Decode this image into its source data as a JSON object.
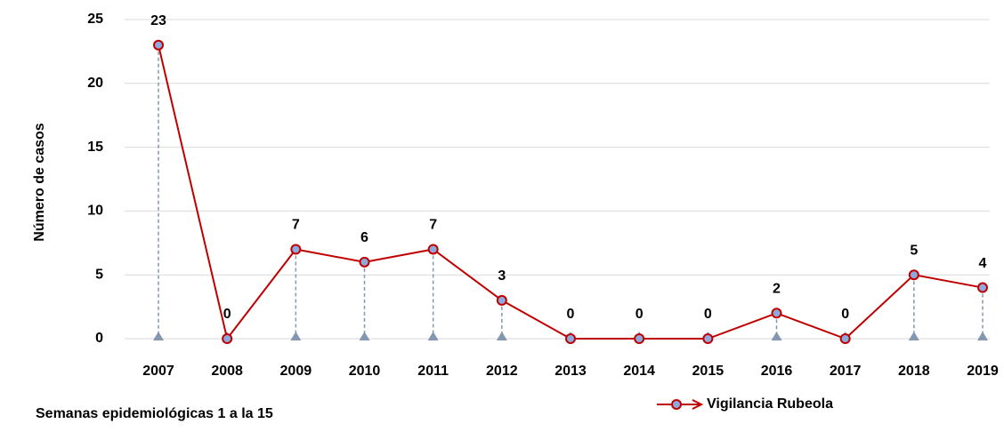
{
  "chart_data": {
    "type": "line",
    "y_label": "Número de casos",
    "note": "Semanas epidemiológicas 1 a la 15",
    "categories": [
      "2007",
      "2008",
      "2009",
      "2010",
      "2011",
      "2012",
      "2013",
      "2014",
      "2015",
      "2016",
      "2017",
      "2018",
      "2019"
    ],
    "series": [
      {
        "name": "Vigilancia Rubeola",
        "color": "#c00000",
        "marker_color": "#8ea9db",
        "values": [
          23,
          0,
          7,
          6,
          7,
          3,
          0,
          0,
          0,
          2,
          0,
          5,
          4
        ]
      }
    ],
    "ylim": [
      0,
      25
    ],
    "yticks": [
      0,
      5,
      10,
      15,
      20,
      25
    ],
    "grid": true,
    "legend": "bottom"
  }
}
